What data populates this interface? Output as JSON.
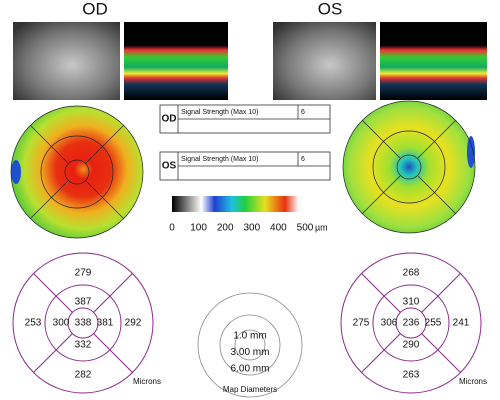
{
  "od": {
    "label": "OD",
    "signal": {
      "label": "Signal Strength (Max 10)",
      "value": 6
    },
    "etdrs": {
      "outer_top": 279,
      "inner_top": 387,
      "outer_left": 253,
      "inner_left": 300,
      "center": 338,
      "inner_right": 381,
      "outer_right": 292,
      "inner_bottom": 332,
      "outer_bottom": 282
    }
  },
  "os": {
    "label": "OS",
    "signal": {
      "label": "Signal Strength (Max 10)",
      "value": 6
    },
    "etdrs": {
      "outer_top": 268,
      "inner_top": 310,
      "outer_left": 275,
      "inner_left": 306,
      "center": 236,
      "inner_right": 255,
      "outer_right": 241,
      "inner_bottom": 290,
      "outer_bottom": 263
    }
  },
  "color_scale": {
    "ticks": [
      0,
      100,
      200,
      300,
      400,
      500
    ],
    "unit": "µm"
  },
  "units_label": "Microns",
  "map_diameters": {
    "title": "Map Diameters",
    "labels": [
      "1.0 mm",
      "3.00 mm",
      "6.00 mm"
    ]
  }
}
